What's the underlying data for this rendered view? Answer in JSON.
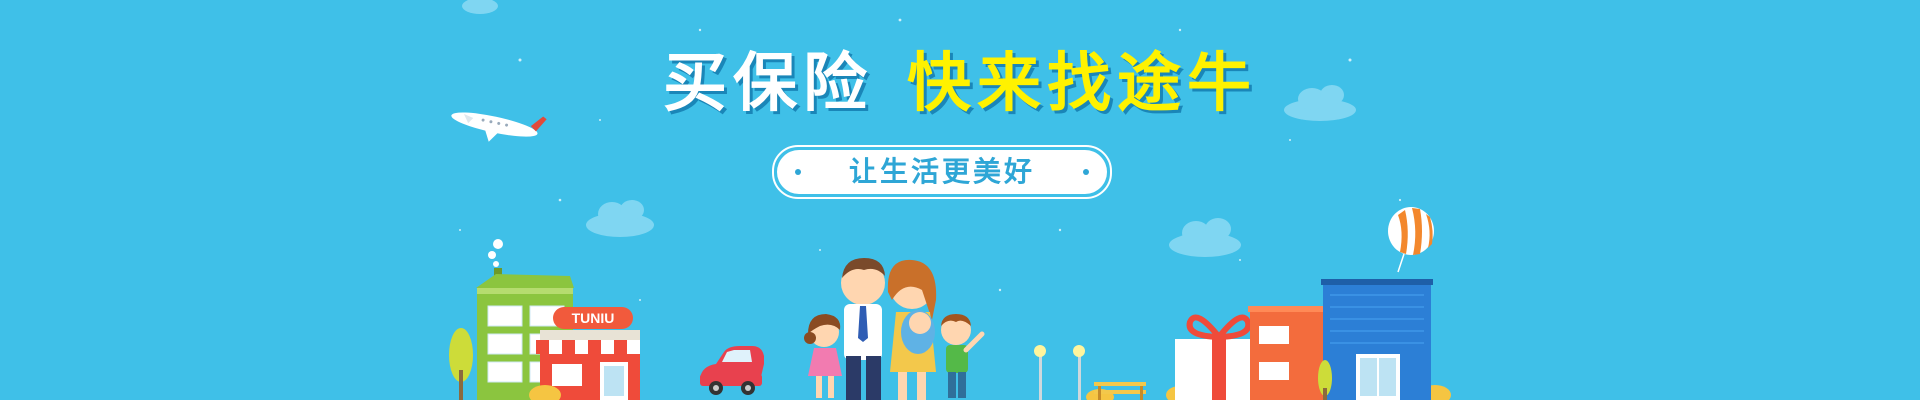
{
  "banner": {
    "headline_part1": "买保险",
    "headline_part2": "快来找途牛",
    "tagline": "让生活更美好",
    "shop_sign": "TUNIU"
  },
  "colors": {
    "sky": "#3fc0e8",
    "headline_white": "#ffffff",
    "headline_yellow": "#fff200",
    "tagline_text": "#2ea6d6"
  },
  "icons": [
    "airplane-icon",
    "cloud-icon",
    "balloon-icon",
    "gift-box-icon",
    "car-icon",
    "family-icon",
    "tree-icon",
    "street-lamp-icon",
    "bench-icon",
    "building-icon"
  ]
}
